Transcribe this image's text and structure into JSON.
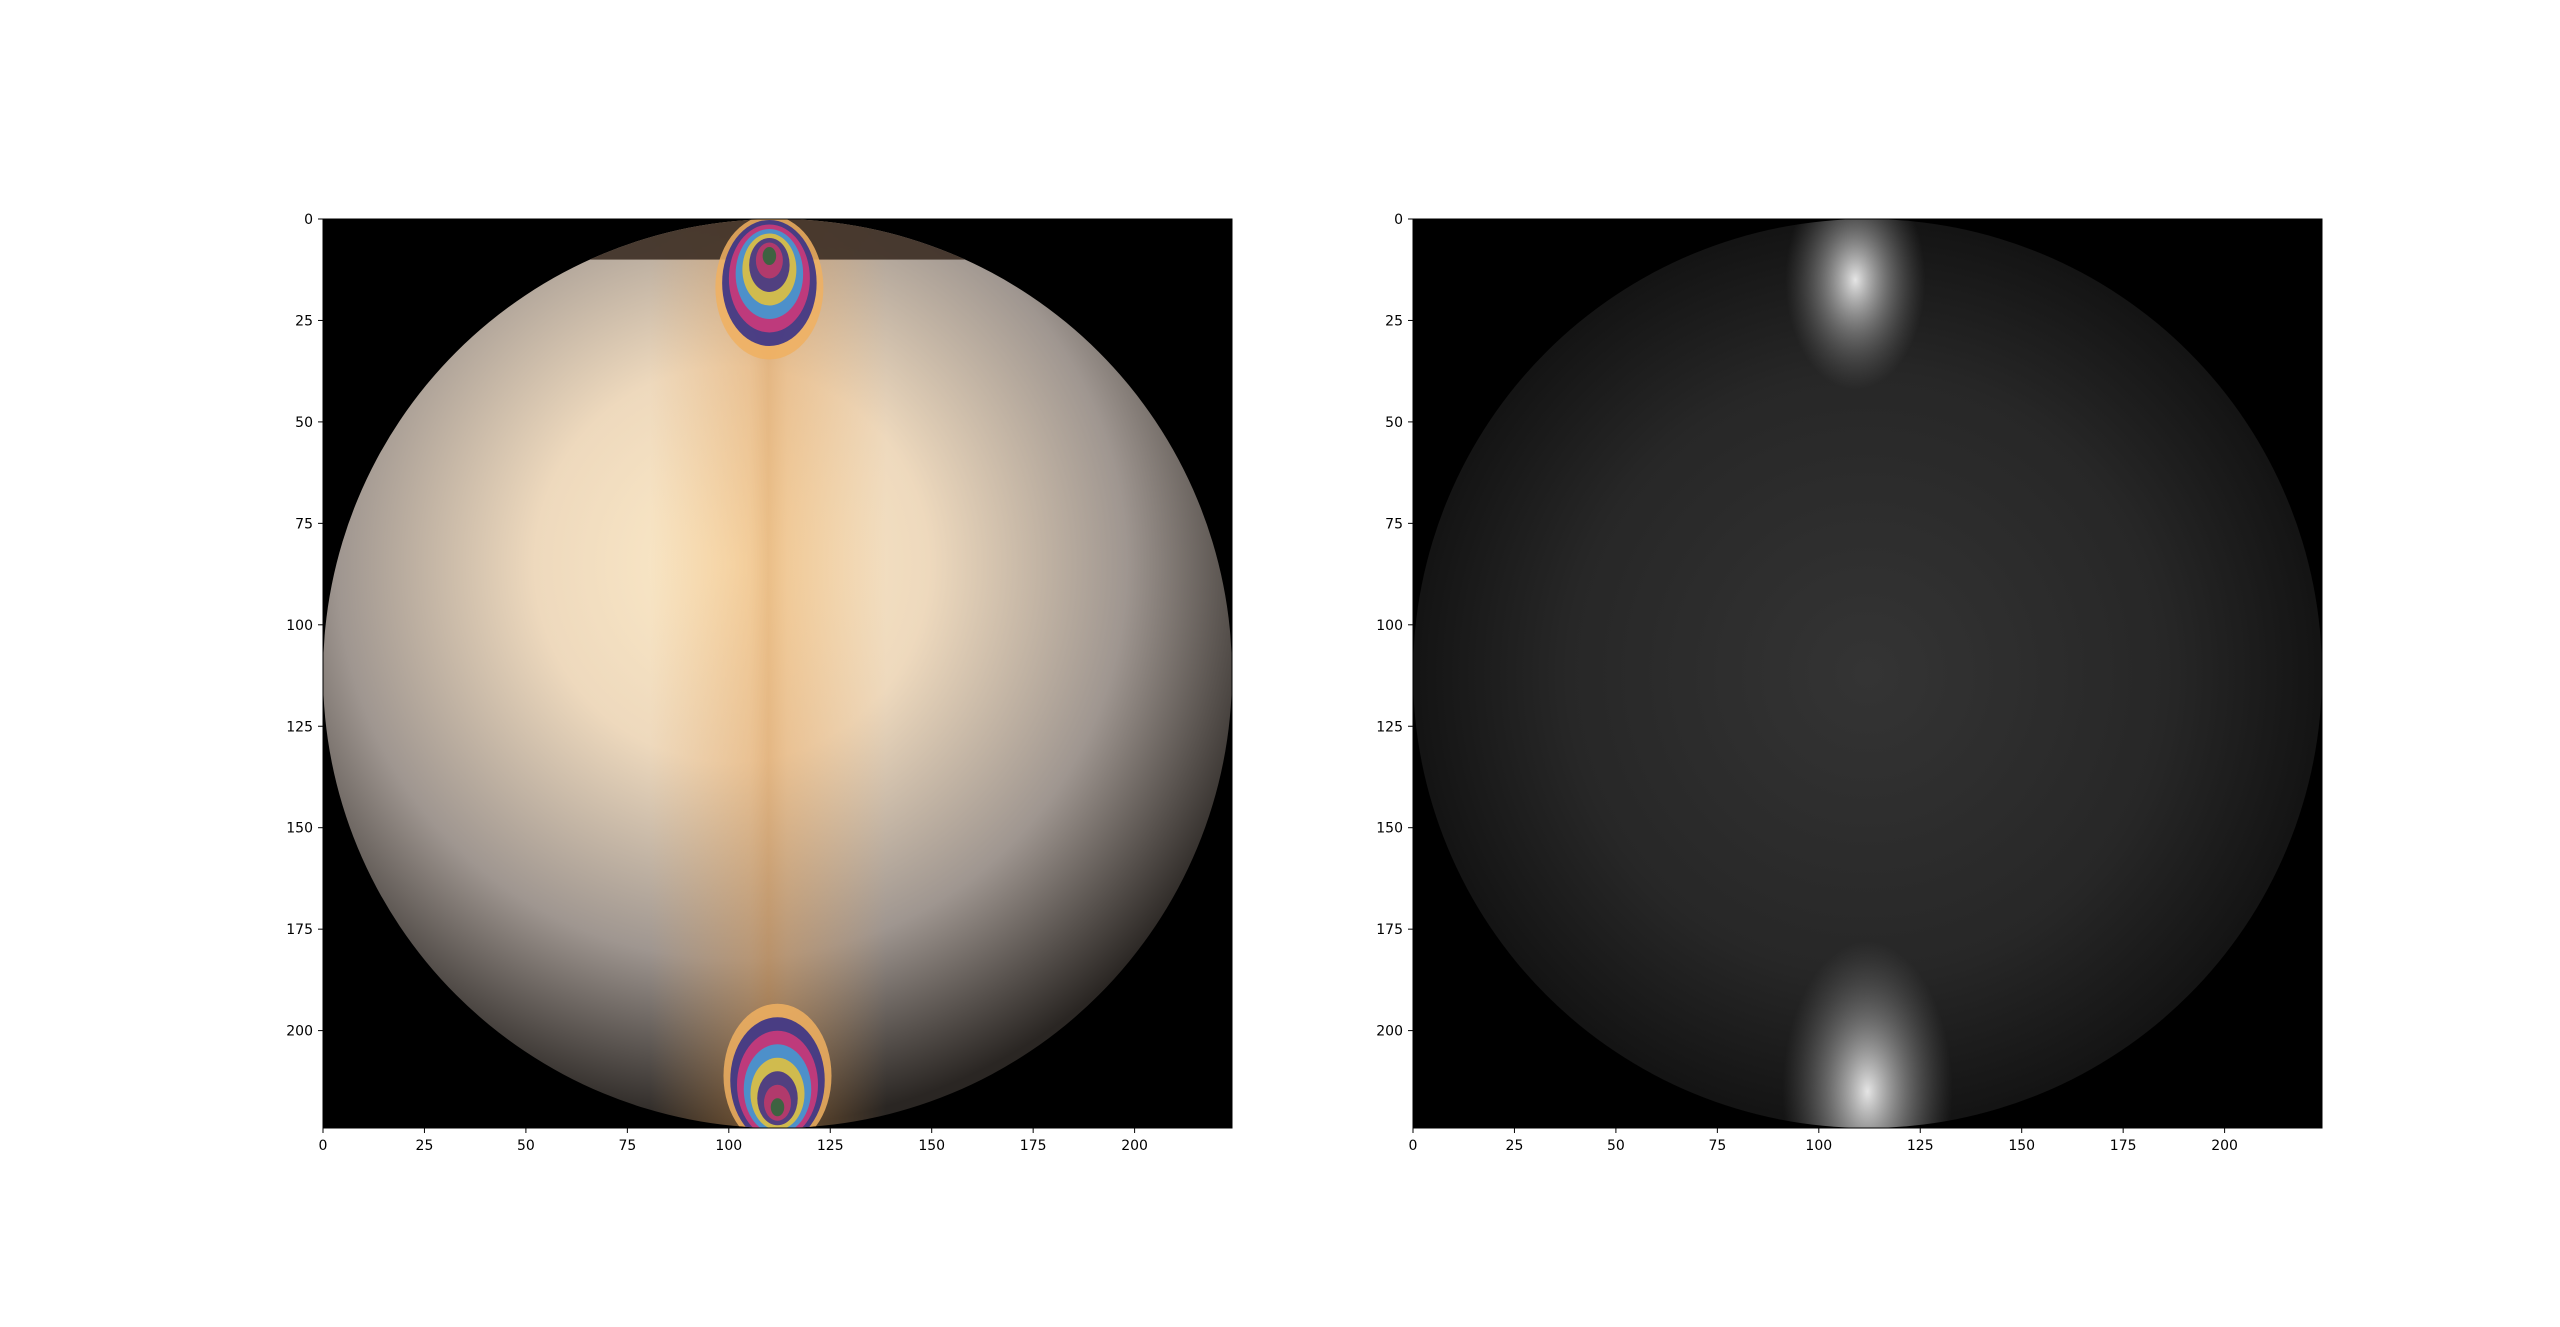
{
  "figure": {
    "background": "#ffffff"
  },
  "chart_data": [
    {
      "type": "heatmap",
      "title": "",
      "xlabel": "",
      "ylabel": "",
      "description_key": "photoelastic-fringe-image",
      "image_size": [
        224,
        224
      ],
      "xlim": [
        0,
        224
      ],
      "ylim": [
        224,
        0
      ],
      "xticks": [
        0,
        25,
        50,
        75,
        100,
        125,
        150,
        175,
        200
      ],
      "yticks": [
        0,
        25,
        50,
        75,
        100,
        125,
        150,
        175,
        200
      ],
      "colormap": "rgb",
      "disc": {
        "center": [
          112,
          112
        ],
        "radius": 112
      },
      "fringe_centers": [
        [
          110,
          8
        ],
        [
          112,
          220
        ]
      ],
      "colors": {
        "center": "#fde9c6",
        "edge": "#2a2623",
        "background": "#000000"
      }
    },
    {
      "type": "heatmap",
      "title": "",
      "xlabel": "",
      "ylabel": "",
      "description_key": "grayscale-stress-map",
      "image_size": [
        224,
        224
      ],
      "xlim": [
        0,
        224
      ],
      "ylim": [
        224,
        0
      ],
      "xticks": [
        0,
        25,
        50,
        75,
        100,
        125,
        150,
        175,
        200
      ],
      "yticks": [
        0,
        25,
        50,
        75,
        100,
        125,
        150,
        175,
        200
      ],
      "colormap": "gray",
      "disc": {
        "center": [
          112,
          112
        ],
        "radius": 112
      },
      "bright_spots": [
        [
          109,
          15
        ],
        [
          112,
          215
        ]
      ],
      "colors": {
        "center": "#323232",
        "edge": "#101010",
        "background": "#000000"
      }
    }
  ]
}
